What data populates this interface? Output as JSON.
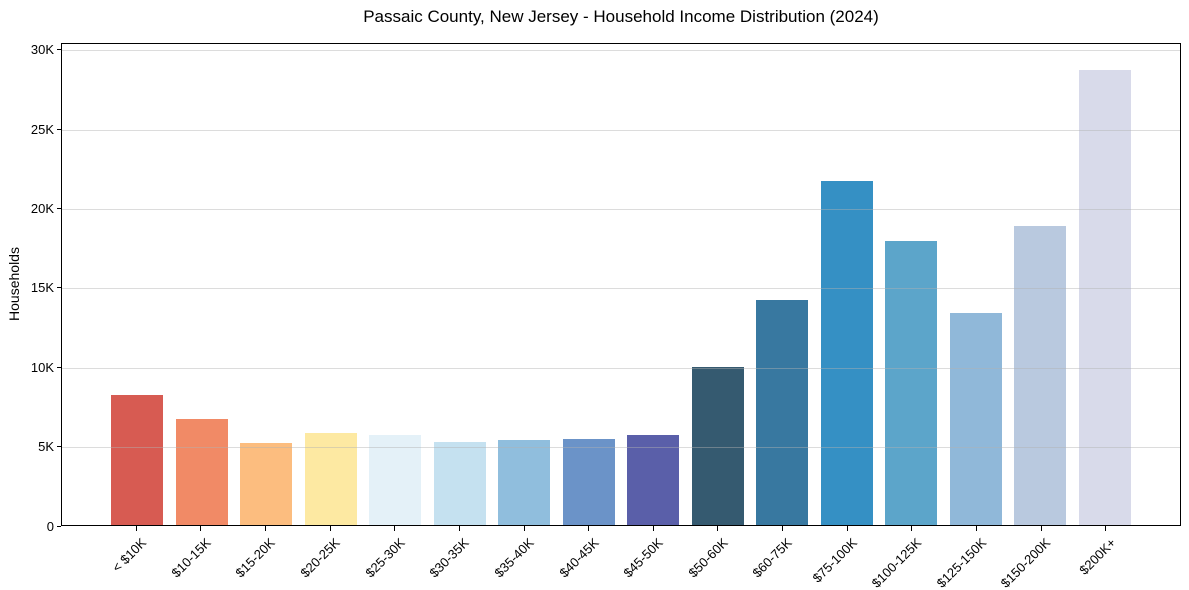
{
  "chart_data": {
    "type": "bar",
    "title": "Passaic County, New Jersey - Household Income Distribution (2024)",
    "xlabel": "",
    "ylabel": "Households",
    "categories": [
      "< $10K",
      "$10-15K",
      "$15-20K",
      "$20-25K",
      "$25-30K",
      "$30-35K",
      "$35-40K",
      "$40-45K",
      "$45-50K",
      "$50-60K",
      "$60-75K",
      "$75-100K",
      "$100-125K",
      "$125-150K",
      "$150-200K",
      "$200K+"
    ],
    "values": [
      8200,
      6700,
      5200,
      5800,
      5700,
      5250,
      5400,
      5450,
      5700,
      10000,
      14250,
      21750,
      18000,
      13400,
      18950,
      28800
    ],
    "bar_colors": [
      "#d75b52",
      "#f18a66",
      "#fcbd7f",
      "#fde9a2",
      "#e4f1f8",
      "#c5e1f0",
      "#90bedd",
      "#6b93c8",
      "#5a5fa9",
      "#355a70",
      "#3878a0",
      "#3590c4",
      "#5ca5ca",
      "#90b8d9",
      "#b9c9df",
      "#d8daea"
    ],
    "ytick_labels": [
      "0",
      "5K",
      "10K",
      "15K",
      "20K",
      "25K",
      "30K"
    ],
    "ytick_values": [
      0,
      5000,
      10000,
      15000,
      20000,
      25000,
      30000
    ],
    "ylim": [
      0,
      30440
    ],
    "grid": "horizontal-only",
    "legend": "none",
    "plot_border": "full-box"
  }
}
